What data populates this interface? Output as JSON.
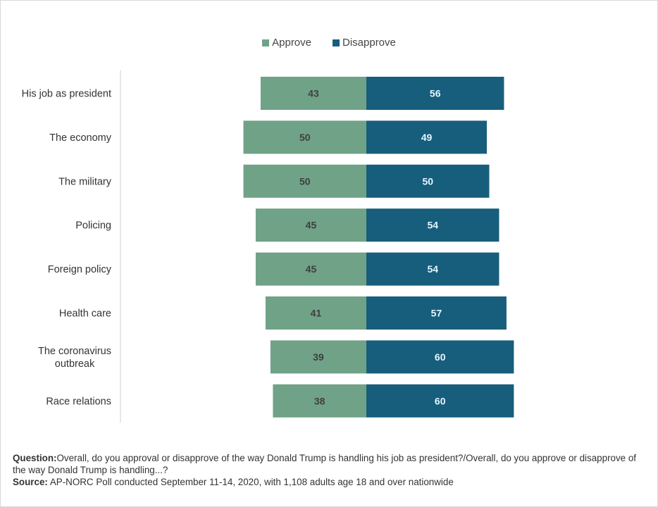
{
  "chart_data": {
    "type": "bar",
    "orientation": "horizontal-diverging",
    "categories": [
      "His job as president",
      "The economy",
      "The military",
      "Policing",
      "Foreign policy",
      "Health care",
      "The coronavirus outbreak",
      "Race relations"
    ],
    "series": [
      {
        "name": "Approve",
        "values": [
          43,
          50,
          50,
          45,
          45,
          41,
          39,
          38
        ]
      },
      {
        "name": "Disapprove",
        "values": [
          56,
          49,
          50,
          54,
          54,
          57,
          60,
          60
        ]
      }
    ],
    "colors": {
      "Approve": "#6fa287",
      "Disapprove": "#175e7d"
    },
    "label_colors": {
      "Approve": "#3f3f3f",
      "Disapprove": "#e6f6ff"
    },
    "legend_position": "top-center"
  },
  "footer": {
    "question_label": "Question:",
    "question_text": "Overall, do you approval or disapprove of the way Donald Trump is handling his job as president?/Overall, do you approve or disapprove of the way Donald Trump is handling...?",
    "source_label": "Source:",
    "source_text": "AP-NORC Poll conducted September 11-14, 2020, with 1,108 adults age 18 and over nationwide"
  }
}
